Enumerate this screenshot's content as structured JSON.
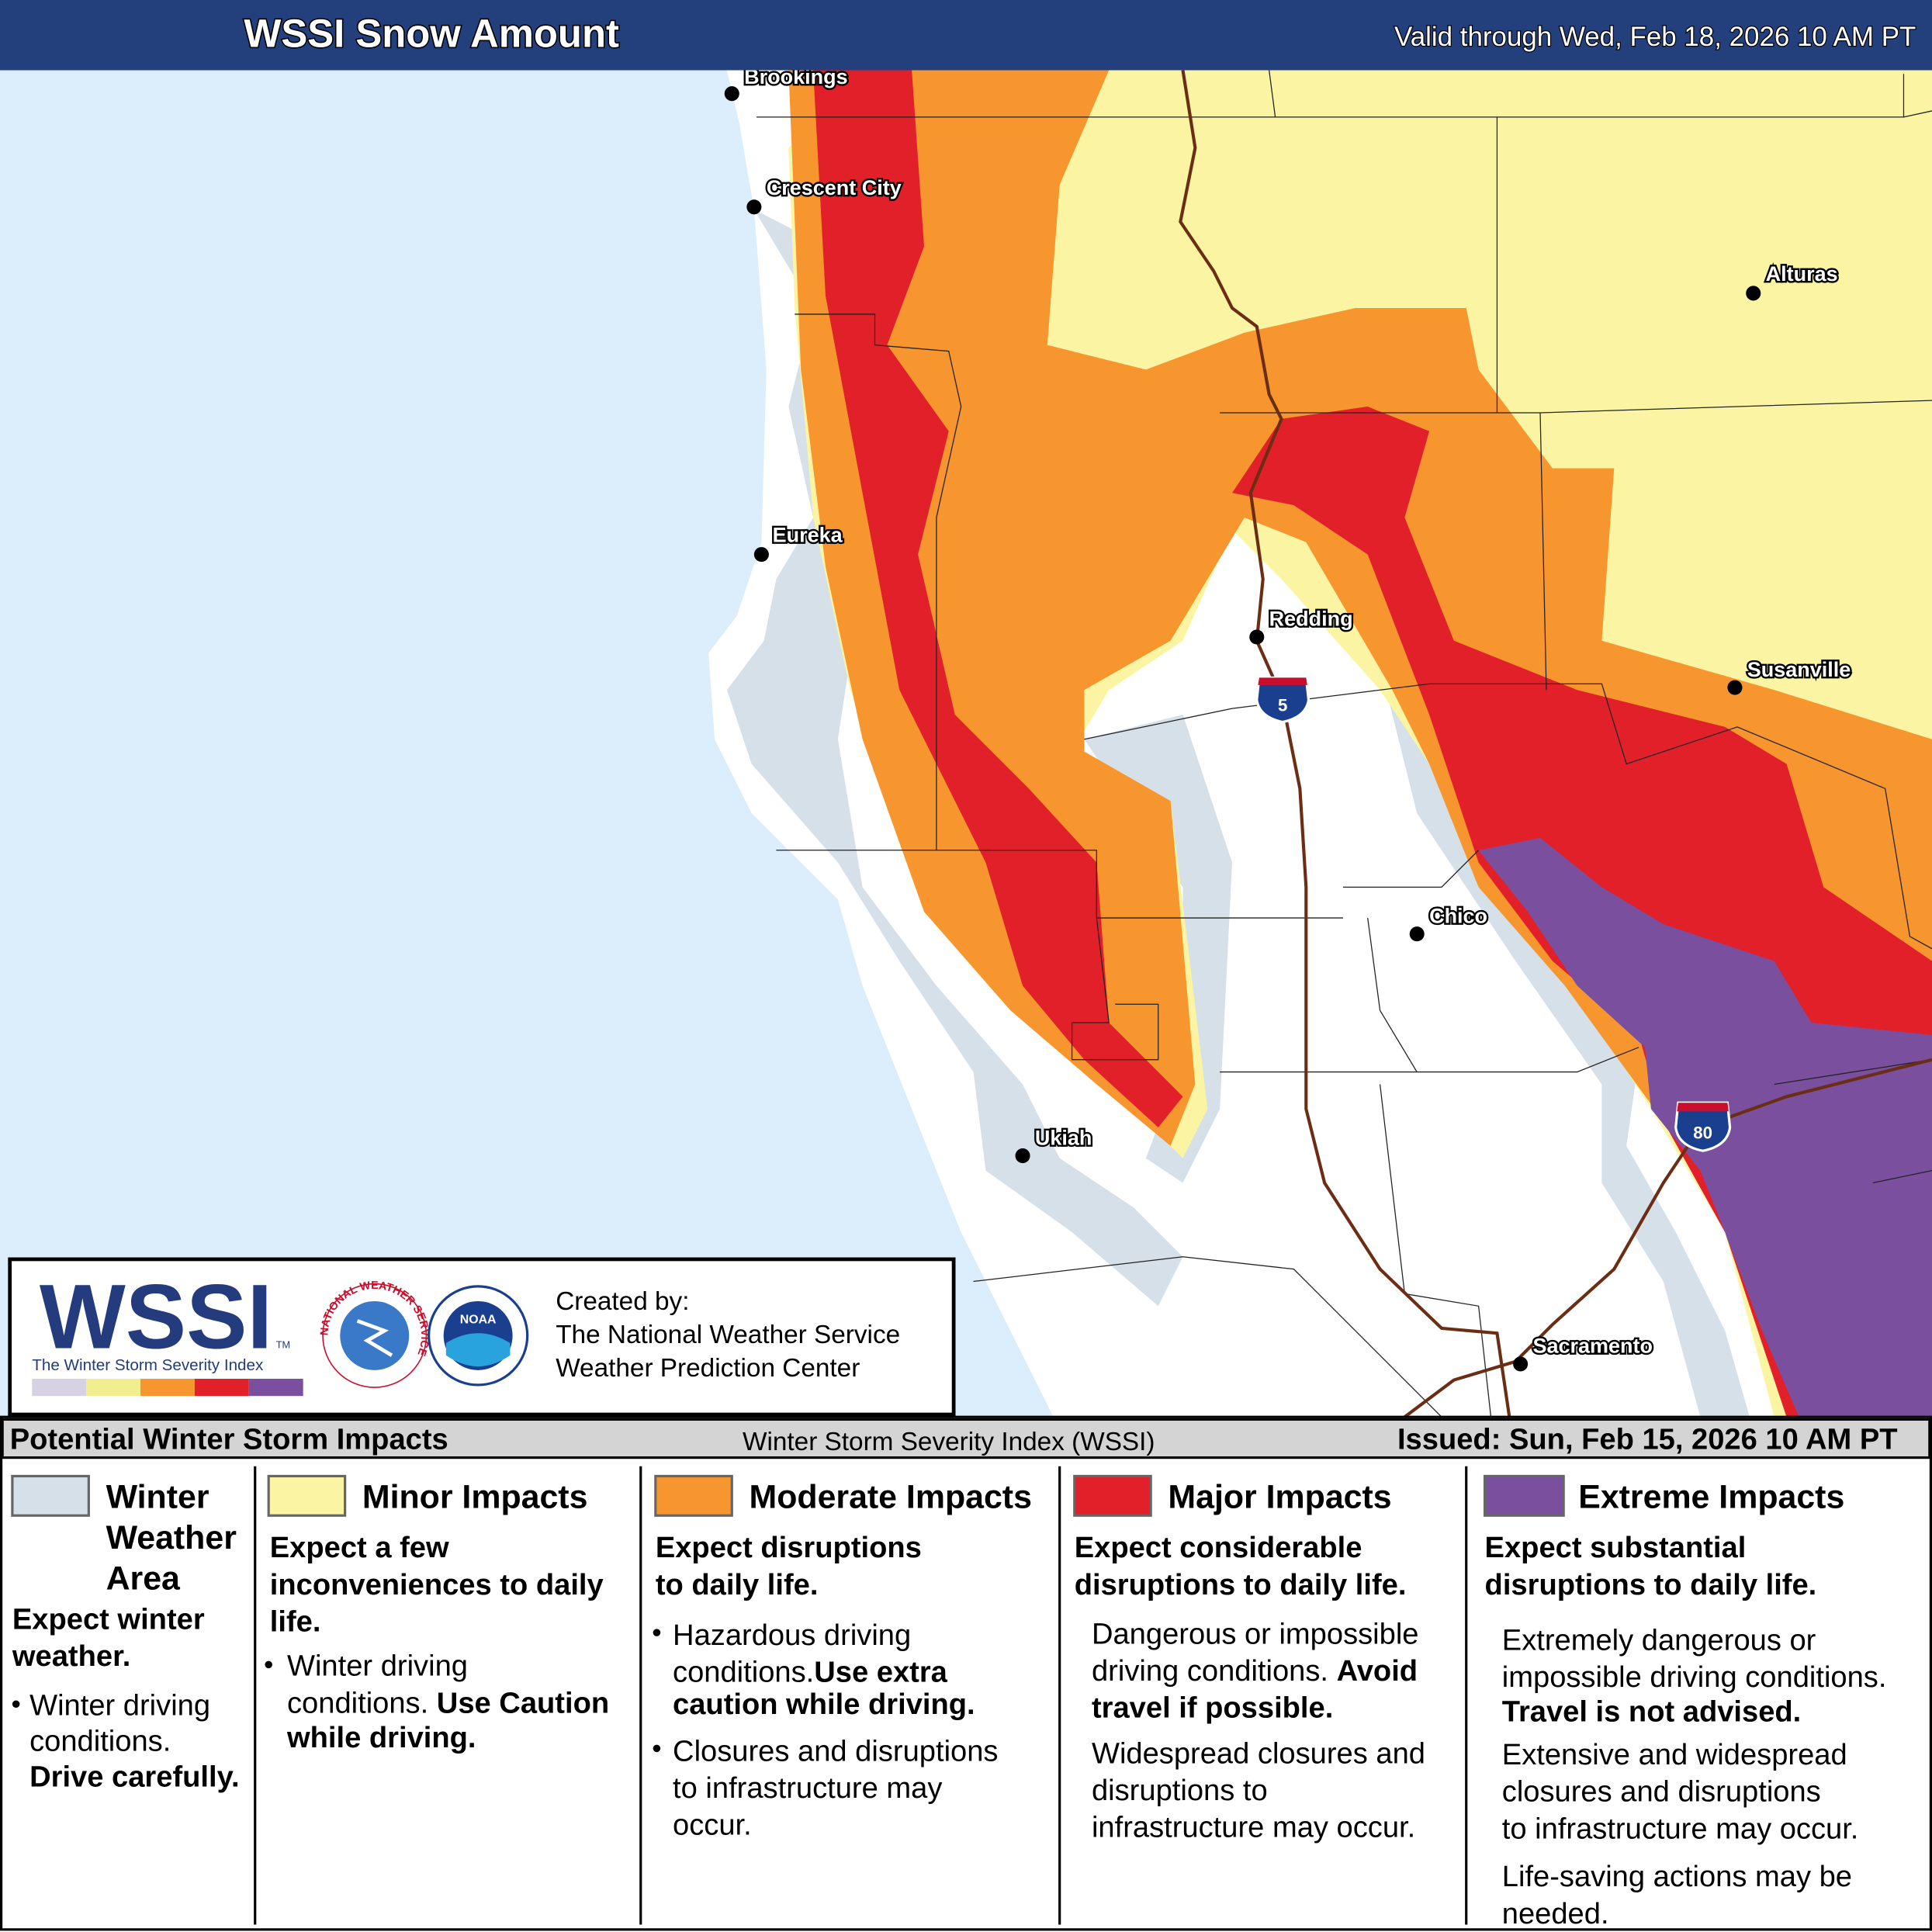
{
  "header": {
    "title": "WSSI Snow Amount",
    "valid": "Valid through Wed, Feb 18, 2026 10 AM PT"
  },
  "map": {
    "cities": [
      "Brookings",
      "Crescent City",
      "Alturas",
      "Eureka",
      "Redding",
      "Susanville",
      "Chico",
      "Ukiah",
      "Sacramento"
    ],
    "highways": [
      "5",
      "80"
    ]
  },
  "logo": {
    "wordmark": "WSSI",
    "trademark": "TM",
    "tagline": "The Winter Storm Severity Index",
    "nws": "NATIONAL WEATHER SERVICE",
    "noaa": "NOAA",
    "credits": [
      "Created by:",
      "The National Weather Service",
      "Weather Prediction Center"
    ]
  },
  "legend_bar": {
    "left": "Potential Winter Storm Impacts",
    "center": "Winter Storm Severity Index (WSSI)",
    "right": "Issued: Sun, Feb 15, 2026 10 AM PT"
  },
  "categories": [
    {
      "name": [
        "Winter",
        "Weather",
        "Area"
      ],
      "summary": [
        "Expect winter",
        "weather."
      ],
      "details": [
        "Winter driving",
        "conditions.",
        "Drive carefully."
      ]
    },
    {
      "name": [
        "Minor Impacts"
      ],
      "summary": [
        "Expect a few",
        "inconveniences to daily",
        "life."
      ],
      "details": [
        "Winter driving",
        "conditions.",
        "Use Caution",
        "while driving."
      ]
    },
    {
      "name": [
        "Moderate Impacts"
      ],
      "summary": [
        "Expect disruptions",
        "to daily life."
      ],
      "details": [
        "Hazardous driving",
        "conditions.",
        "Use extra",
        "caution while driving.",
        "Closures and disruptions",
        "to infrastructure may",
        "occur."
      ]
    },
    {
      "name": [
        "Major Impacts"
      ],
      "summary": [
        "Expect considerable",
        "disruptions to daily life."
      ],
      "details": [
        "Dangerous or impossible",
        "driving conditions.",
        "Avoid",
        "travel if possible.",
        "Widespread closures and",
        "disruptions to",
        "infrastructure may occur."
      ]
    },
    {
      "name": [
        "Extreme Impacts"
      ],
      "summary": [
        "Expect substantial",
        "disruptions to daily life."
      ],
      "details": [
        "Extremely dangerous or",
        "impossible driving conditions.",
        "Travel is not advised.",
        "Extensive and widespread",
        "closures and disruptions",
        "to infrastructure may occur.",
        "Life-saving actions may be",
        "needed."
      ]
    }
  ]
}
